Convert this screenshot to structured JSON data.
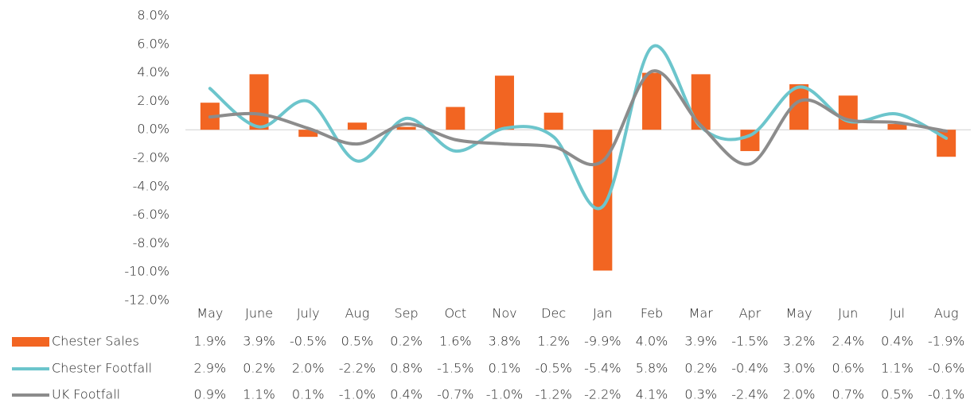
{
  "chart_data": {
    "type": "bar-line",
    "categories": [
      "May",
      "June",
      "July",
      "Aug",
      "Sep",
      "Oct",
      "Nov",
      "Dec",
      "Jan",
      "Feb",
      "Mar",
      "Apr",
      "May",
      "Jun",
      "Jul",
      "Aug"
    ],
    "ylim": [
      -12,
      8
    ],
    "yticks": [
      {
        "value": 8,
        "label": "8.0%"
      },
      {
        "value": 6,
        "label": "6.0%"
      },
      {
        "value": 4,
        "label": "4.0%"
      },
      {
        "value": 2,
        "label": "2.0%"
      },
      {
        "value": 0,
        "label": "0.0%"
      },
      {
        "value": -2,
        "label": "-2.0%"
      },
      {
        "value": -4,
        "label": "-4.0%"
      },
      {
        "value": -6,
        "label": "-6.0%"
      },
      {
        "value": -8,
        "label": "-8.0%"
      },
      {
        "value": -10,
        "label": "-10.0%"
      },
      {
        "value": -12,
        "label": "-12.0%"
      }
    ],
    "series": [
      {
        "name": "Chester Sales",
        "type": "bar",
        "color": "#f26522",
        "values": [
          1.9,
          3.9,
          -0.5,
          0.5,
          0.2,
          1.6,
          3.8,
          1.2,
          -9.9,
          4.0,
          3.9,
          -1.5,
          3.2,
          2.4,
          0.4,
          -1.9
        ],
        "value_labels": [
          "1.9%",
          "3.9%",
          "-0.5%",
          "0.5%",
          "0.2%",
          "1.6%",
          "3.8%",
          "1.2%",
          "-9.9%",
          "4.0%",
          "3.9%",
          "-1.5%",
          "3.2%",
          "2.4%",
          "0.4%",
          "-1.9%"
        ]
      },
      {
        "name": "Chester Footfall",
        "type": "line",
        "color": "#6cc5cc",
        "values": [
          2.9,
          0.2,
          2.0,
          -2.2,
          0.8,
          -1.5,
          0.1,
          -0.5,
          -5.4,
          5.8,
          0.2,
          -0.4,
          3.0,
          0.6,
          1.1,
          -0.6
        ],
        "value_labels": [
          "2.9%",
          "0.2%",
          "2.0%",
          "-2.2%",
          "0.8%",
          "-1.5%",
          "0.1%",
          "-0.5%",
          "-5.4%",
          "5.8%",
          "0.2%",
          "-0.4%",
          "3.0%",
          "0.6%",
          "1.1%",
          "-0.6%"
        ]
      },
      {
        "name": "UK Footfall",
        "type": "line",
        "color": "#8c8c8c",
        "values": [
          0.9,
          1.1,
          0.1,
          -1.0,
          0.4,
          -0.7,
          -1.0,
          -1.2,
          -2.2,
          4.1,
          0.3,
          -2.4,
          2.0,
          0.7,
          0.5,
          -0.1
        ],
        "value_labels": [
          "0.9%",
          "1.1%",
          "0.1%",
          "-1.0%",
          "0.4%",
          "-0.7%",
          "-1.0%",
          "-1.2%",
          "-2.2%",
          "4.1%",
          "0.3%",
          "-2.4%",
          "2.0%",
          "0.7%",
          "0.5%",
          "-0.1%"
        ]
      }
    ]
  }
}
